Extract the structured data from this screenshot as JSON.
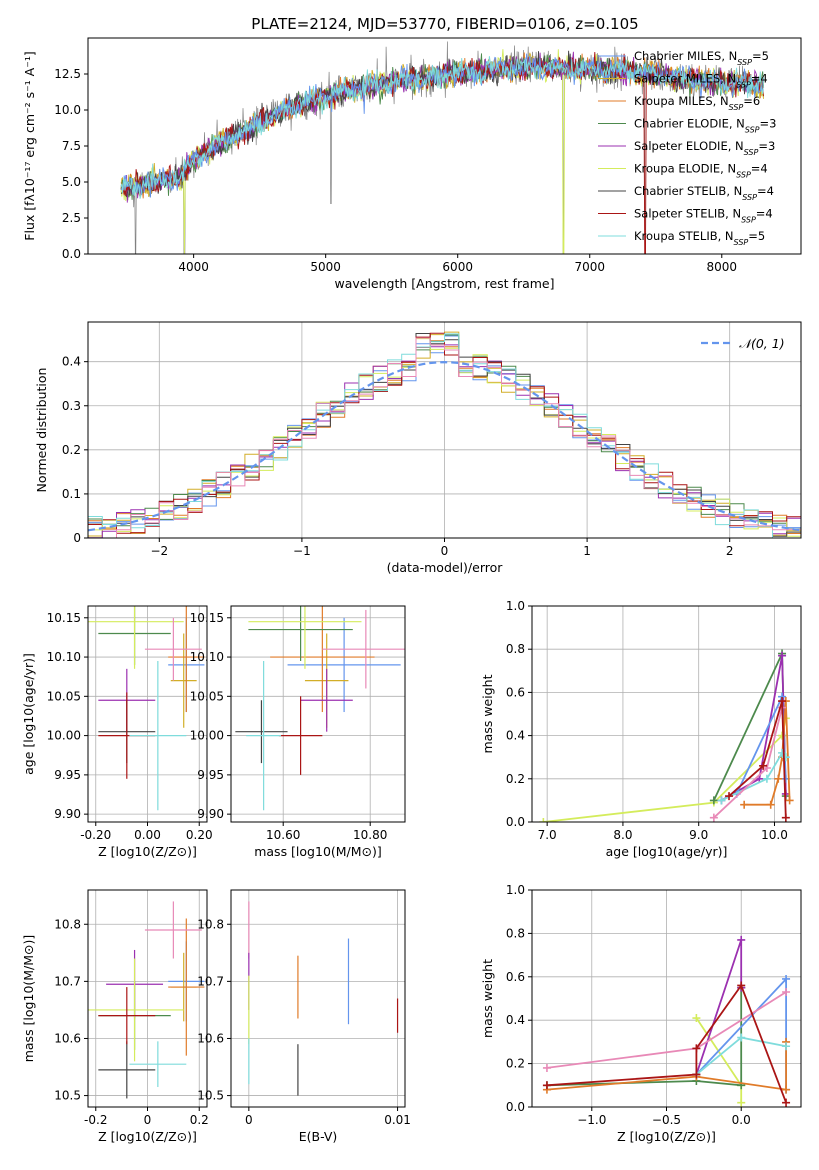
{
  "figure_title": "PLATE=2124, MJD=53770, FIBERID=0106, z=0.105",
  "colors": {
    "chabrier_miles": "#6495ed",
    "salpeter_miles": "#d2ae28",
    "kroupa_miles": "#e07b29",
    "chabrier_elodie": "#4d8a4d",
    "salpeter_elodie": "#9b30b0",
    "kroupa_elodie": "#d4ec5c",
    "chabrier_stelib": "#444444",
    "salpeter_stelib": "#aa1515",
    "kroupa_stelib": "#7fdcdc",
    "pink": "#e889b7",
    "normal": "#6495ed",
    "grid": "#b0b0b0",
    "spectrum_data": "#808080"
  },
  "chart_data": [
    {
      "id": "spectrum",
      "type": "line",
      "xlabel": "wavelength [Angstrom, rest frame]",
      "ylabel": "Flux [fλ10⁻¹⁷ erg cm⁻² s⁻¹ A⁻¹]",
      "xlim": [
        3200,
        8600
      ],
      "ylim": [
        0,
        15
      ],
      "xticks": [
        4000,
        5000,
        6000,
        7000,
        8000
      ],
      "yticks": [
        0.0,
        2.5,
        5.0,
        7.5,
        10.0,
        12.5
      ],
      "grid": false,
      "legend_position": "right",
      "legend": [
        "Chabrier MILES, N_SSP=5",
        "Salpeter MILES, N_SSP=4",
        "Kroupa MILES, N_SSP=6",
        "Chabrier ELODIE, N_SSP=3",
        "Salpeter ELODIE, N_SSP=3",
        "Kroupa ELODIE, N_SSP=4",
        "Chabrier STELIB, N_SSP=4",
        "Salpeter STELIB, N_SSP=4",
        "Kroupa STELIB, N_SSP=5"
      ],
      "continuum": [
        [
          3450,
          4.5
        ],
        [
          3600,
          4.8
        ],
        [
          3700,
          5.0
        ],
        [
          3800,
          5.2
        ],
        [
          3900,
          5.3
        ],
        [
          4000,
          6.6
        ],
        [
          4200,
          7.7
        ],
        [
          4400,
          8.6
        ],
        [
          4600,
          9.6
        ],
        [
          4800,
          10.4
        ],
        [
          5000,
          10.9
        ],
        [
          5200,
          11.4
        ],
        [
          5400,
          11.8
        ],
        [
          5600,
          12.1
        ],
        [
          5800,
          12.3
        ],
        [
          6000,
          12.5
        ],
        [
          6200,
          12.7
        ],
        [
          6400,
          12.9
        ],
        [
          6600,
          13.0
        ],
        [
          6800,
          12.9
        ],
        [
          7000,
          12.8
        ],
        [
          7200,
          12.8
        ],
        [
          7400,
          12.6
        ],
        [
          7600,
          12.3
        ],
        [
          7800,
          12.1
        ],
        [
          8000,
          11.9
        ],
        [
          8200,
          11.8
        ],
        [
          8320,
          11.7
        ]
      ],
      "dips": [
        {
          "x": 3930,
          "y": 0.0
        },
        {
          "x": 6800,
          "y": 0.0
        },
        {
          "x": 7420,
          "y": 0.0
        },
        {
          "x": 5040,
          "y": 3.5
        },
        {
          "x": 3560,
          "y": 0.0
        }
      ]
    },
    {
      "id": "residual_hist",
      "type": "histogram",
      "xlabel": "(data-model)/error",
      "ylabel": "Normed distribution",
      "xlim": [
        -2.5,
        2.5
      ],
      "ylim": [
        0,
        0.49
      ],
      "xticks": [
        -2,
        -1,
        0,
        1,
        2
      ],
      "yticks": [
        0.0,
        0.1,
        0.2,
        0.3,
        0.4
      ],
      "grid": true,
      "legend_position": "top-right",
      "legend": [
        "𝒩(0, 1)"
      ],
      "bin_width": 0.1
    },
    {
      "id": "age_vs_Z",
      "type": "scatter",
      "xlabel": "Z [log10(Z/Z⊙)]",
      "ylabel": "age  [log10(age/yr)]",
      "xlim": [
        -0.23,
        0.23
      ],
      "ylim": [
        9.89,
        10.165
      ],
      "xticks": [
        -0.2,
        0.0,
        0.2
      ],
      "yticks": [
        9.9,
        9.95,
        10.0,
        10.05,
        10.1,
        10.15
      ],
      "grid": true,
      "points": [
        {
          "color": "chabrier_miles",
          "x": 0.15,
          "xerr": 0.07,
          "y": 10.09,
          "yerr": 0.06
        },
        {
          "color": "salpeter_miles",
          "x": 0.14,
          "xerr": 0.05,
          "y": 10.07,
          "yerr": 0.06
        },
        {
          "color": "kroupa_miles",
          "x": 0.15,
          "xerr": 0.07,
          "y": 10.1,
          "yerr": 0.07
        },
        {
          "color": "chabrier_elodie",
          "x": -0.05,
          "xerr": 0.14,
          "y": 10.13,
          "yerr": 0.04
        },
        {
          "color": "salpeter_elodie",
          "x": -0.08,
          "xerr": 0.11,
          "y": 10.045,
          "yerr": 0.04
        },
        {
          "color": "kroupa_elodie",
          "x": -0.05,
          "xerr": 0.19,
          "y": 10.145,
          "yerr": 0.06
        },
        {
          "color": "chabrier_stelib",
          "x": -0.08,
          "xerr": 0.11,
          "y": 10.005,
          "yerr": 0.04
        },
        {
          "color": "salpeter_stelib",
          "x": -0.08,
          "xerr": 0.11,
          "y": 10.0,
          "yerr": 0.055
        },
        {
          "color": "kroupa_stelib",
          "x": 0.04,
          "xerr": 0.11,
          "y": 10.0,
          "yerr": 0.095
        },
        {
          "color": "pink",
          "x": 0.1,
          "xerr": 0.11,
          "y": 10.11,
          "yerr": 0.04
        }
      ]
    },
    {
      "id": "age_vs_mass",
      "type": "scatter",
      "xlabel": "mass [log10(M/M⊙)]",
      "ylabel": "",
      "xlim": [
        10.48,
        10.88
      ],
      "ylim": [
        9.89,
        10.165
      ],
      "xticks": [
        10.6,
        10.8
      ],
      "yticks": [
        9.9,
        9.95,
        10.0,
        10.05,
        10.1,
        10.15
      ],
      "grid": true,
      "points": [
        {
          "color": "chabrier_miles",
          "x": 10.74,
          "xerr": 0.13,
          "y": 10.09,
          "yerr": 0.06
        },
        {
          "color": "salpeter_miles",
          "x": 10.7,
          "xerr": 0.05,
          "y": 10.07,
          "yerr": 0.06
        },
        {
          "color": "kroupa_miles",
          "x": 10.69,
          "xerr": 0.12,
          "y": 10.1,
          "yerr": 0.07
        },
        {
          "color": "chabrier_elodie",
          "x": 10.64,
          "xerr": 0.12,
          "y": 10.135,
          "yerr": 0.04
        },
        {
          "color": "salpeter_elodie",
          "x": 10.7,
          "xerr": 0.06,
          "y": 10.045,
          "yerr": 0.04
        },
        {
          "color": "kroupa_elodie",
          "x": 10.65,
          "xerr": 0.13,
          "y": 10.145,
          "yerr": 0.06
        },
        {
          "color": "chabrier_stelib",
          "x": 10.55,
          "xerr": 0.06,
          "y": 10.005,
          "yerr": 0.04
        },
        {
          "color": "salpeter_stelib",
          "x": 10.64,
          "xerr": 0.05,
          "y": 10.0,
          "yerr": 0.05
        },
        {
          "color": "kroupa_stelib",
          "x": 10.555,
          "xerr": 0.04,
          "y": 10.0,
          "yerr": 0.095
        },
        {
          "color": "pink",
          "x": 10.79,
          "xerr": 0.1,
          "y": 10.11,
          "yerr": 0.05
        }
      ]
    },
    {
      "id": "massweight_vs_age",
      "type": "line",
      "xlabel": "age  [log10(age/yr)]",
      "ylabel": "mass weight",
      "xlim": [
        6.8,
        10.35
      ],
      "ylim": [
        0,
        1.0
      ],
      "xticks": [
        7,
        8,
        9,
        10
      ],
      "yticks": [
        0.0,
        0.2,
        0.4,
        0.6,
        0.8,
        1.0
      ],
      "grid": true,
      "series": [
        {
          "color": "kroupa_elodie",
          "points": [
            [
              6.95,
              0.0
            ],
            [
              9.2,
              0.09
            ],
            [
              10.1,
              0.4
            ],
            [
              10.15,
              0.48
            ]
          ]
        },
        {
          "color": "chabrier_elodie",
          "points": [
            [
              9.2,
              0.1
            ],
            [
              10.1,
              0.78
            ],
            [
              10.15,
              0.12
            ]
          ]
        },
        {
          "color": "salpeter_elodie",
          "points": [
            [
              9.3,
              0.1
            ],
            [
              9.8,
              0.2
            ],
            [
              10.1,
              0.77
            ],
            [
              10.15,
              0.13
            ]
          ]
        },
        {
          "color": "chabrier_miles",
          "points": [
            [
              9.5,
              0.13
            ],
            [
              10.1,
              0.58
            ],
            [
              10.15,
              0.2
            ]
          ]
        },
        {
          "color": "kroupa_miles",
          "points": [
            [
              9.6,
              0.08
            ],
            [
              9.95,
              0.08
            ],
            [
              10.05,
              0.2
            ],
            [
              10.1,
              0.3
            ],
            [
              10.15,
              0.56
            ],
            [
              10.2,
              0.1
            ]
          ]
        },
        {
          "color": "kroupa_stelib",
          "points": [
            [
              9.3,
              0.1
            ],
            [
              9.9,
              0.2
            ],
            [
              10.1,
              0.32
            ],
            [
              10.15,
              0.3
            ]
          ]
        },
        {
          "color": "pink",
          "points": [
            [
              9.2,
              0.02
            ],
            [
              9.9,
              0.25
            ],
            [
              10.1,
              0.53
            ]
          ]
        },
        {
          "color": "salpeter_stelib",
          "points": [
            [
              9.4,
              0.12
            ],
            [
              9.85,
              0.26
            ],
            [
              10.1,
              0.56
            ],
            [
              10.15,
              0.02
            ]
          ]
        }
      ]
    },
    {
      "id": "mass_vs_Z",
      "type": "scatter",
      "xlabel": "Z [log10(Z/Z⊙)]",
      "ylabel": "mass [log10(M/M⊙)]",
      "xlim": [
        -0.23,
        0.23
      ],
      "ylim": [
        10.48,
        10.86
      ],
      "xticks": [
        -0.2,
        0.0,
        0.2
      ],
      "yticks": [
        10.5,
        10.6,
        10.7,
        10.8
      ],
      "grid": true,
      "points": [
        {
          "color": "chabrier_miles",
          "x": 0.15,
          "xerr": 0.07,
          "y": 10.7,
          "yerr": 0.07
        },
        {
          "color": "salpeter_miles",
          "x": 0.14,
          "xerr": 0.05,
          "y": 10.69,
          "yerr": 0.06
        },
        {
          "color": "kroupa_miles",
          "x": 0.15,
          "xerr": 0.07,
          "y": 10.69,
          "yerr": 0.12
        },
        {
          "color": "chabrier_elodie",
          "x": -0.05,
          "xerr": 0.14,
          "y": 10.64,
          "yerr": 0.06
        },
        {
          "color": "salpeter_elodie",
          "x": -0.05,
          "xerr": 0.11,
          "y": 10.695,
          "yerr": 0.06
        },
        {
          "color": "kroupa_elodie",
          "x": -0.05,
          "xerr": 0.19,
          "y": 10.65,
          "yerr": 0.09
        },
        {
          "color": "chabrier_stelib",
          "x": -0.08,
          "xerr": 0.11,
          "y": 10.545,
          "yerr": 0.05
        },
        {
          "color": "salpeter_stelib",
          "x": -0.08,
          "xerr": 0.11,
          "y": 10.64,
          "yerr": 0.05
        },
        {
          "color": "kroupa_stelib",
          "x": 0.04,
          "xerr": 0.11,
          "y": 10.555,
          "yerr": 0.04
        },
        {
          "color": "pink",
          "x": 0.1,
          "xerr": 0.11,
          "y": 10.79,
          "yerr": 0.05
        }
      ]
    },
    {
      "id": "mass_vs_ebv",
      "type": "scatter",
      "xlabel": "E(B-V)",
      "ylabel": "",
      "xlim": [
        -0.0012,
        0.0105
      ],
      "ylim": [
        10.48,
        10.86
      ],
      "xticks": [
        0.0,
        0.01
      ],
      "yticks": [
        10.5,
        10.6,
        10.7,
        10.8
      ],
      "grid": true,
      "points": [
        {
          "color": "pink",
          "x": 0.0,
          "y": 10.79,
          "yerr": 0.05
        },
        {
          "color": "salpeter_elodie",
          "x": 0.0,
          "y": 10.7,
          "yerr": 0.05
        },
        {
          "color": "kroupa_elodie",
          "x": 0.0,
          "y": 10.65,
          "yerr": 0.06
        },
        {
          "color": "kroupa_stelib",
          "x": 0.0,
          "y": 10.56,
          "yerr": 0.04
        },
        {
          "color": "kroupa_miles",
          "x": 0.0033,
          "y": 10.69,
          "yerr": 0.055
        },
        {
          "color": "chabrier_stelib",
          "x": 0.0033,
          "y": 10.545,
          "yerr": 0.045
        },
        {
          "color": "chabrier_miles",
          "x": 0.0067,
          "y": 10.7,
          "yerr": 0.075
        },
        {
          "color": "salpeter_stelib",
          "x": 0.01,
          "y": 10.64,
          "yerr": 0.03
        }
      ]
    },
    {
      "id": "massweight_vs_Z",
      "type": "line",
      "xlabel": "Z [log10(Z/Z⊙)]",
      "ylabel": "mass weight",
      "xlim": [
        -1.4,
        0.4
      ],
      "ylim": [
        0,
        1.0
      ],
      "xticks": [
        -1.0,
        -0.5,
        0.0
      ],
      "yticks": [
        0.0,
        0.2,
        0.4,
        0.6,
        0.8,
        1.0
      ],
      "grid": true,
      "series": [
        {
          "color": "kroupa_elodie",
          "points": [
            [
              -0.3,
              0.41
            ],
            [
              0.0,
              0.1
            ],
            [
              0.0,
              0.02
            ]
          ]
        },
        {
          "color": "chabrier_elodie",
          "points": [
            [
              -1.3,
              0.1
            ],
            [
              -0.3,
              0.12
            ],
            [
              0.0,
              0.1
            ],
            [
              0.0,
              0.55
            ]
          ]
        },
        {
          "color": "salpeter_elodie",
          "points": [
            [
              -0.3,
              0.15
            ],
            [
              0.0,
              0.77
            ],
            [
              0.0,
              0.55
            ]
          ]
        },
        {
          "color": "chabrier_miles",
          "points": [
            [
              -0.3,
              0.15
            ],
            [
              0.3,
              0.59
            ],
            [
              0.3,
              0.08
            ]
          ]
        },
        {
          "color": "kroupa_miles",
          "points": [
            [
              -1.3,
              0.08
            ],
            [
              -0.3,
              0.14
            ],
            [
              0.3,
              0.08
            ],
            [
              0.3,
              0.3
            ]
          ]
        },
        {
          "color": "kroupa_stelib",
          "points": [
            [
              -0.3,
              0.15
            ],
            [
              0.0,
              0.32
            ],
            [
              0.3,
              0.28
            ]
          ]
        },
        {
          "color": "pink",
          "points": [
            [
              -1.3,
              0.18
            ],
            [
              -0.3,
              0.27
            ],
            [
              0.3,
              0.53
            ]
          ]
        },
        {
          "color": "salpeter_stelib",
          "points": [
            [
              -1.3,
              0.1
            ],
            [
              -0.3,
              0.15
            ],
            [
              -0.3,
              0.27
            ],
            [
              0.0,
              0.56
            ],
            [
              0.3,
              0.02
            ]
          ]
        }
      ]
    }
  ]
}
